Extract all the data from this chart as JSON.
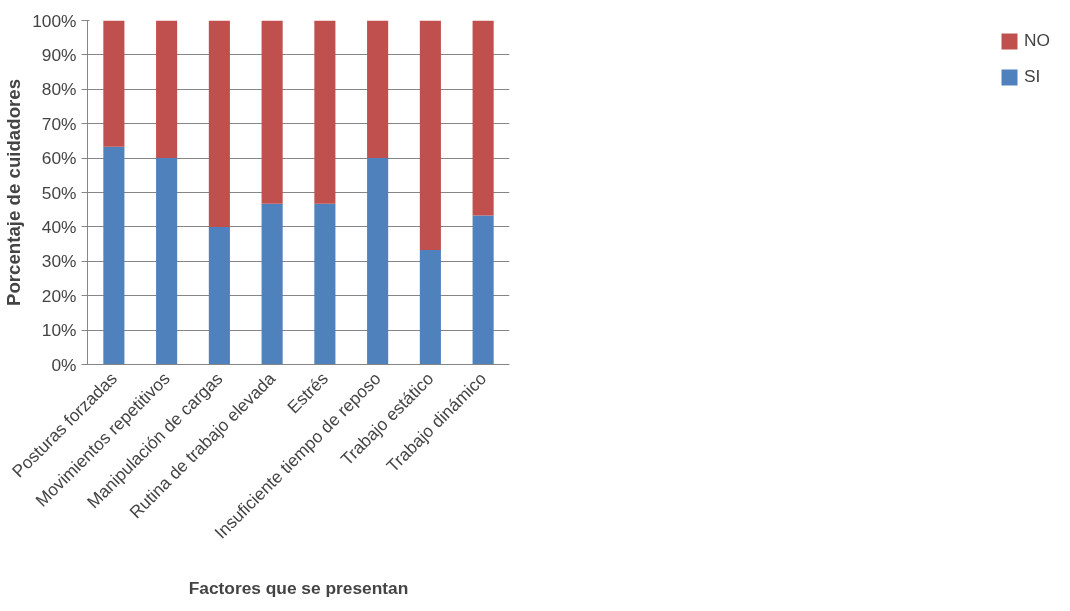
{
  "chart_data": {
    "type": "bar",
    "stacked": true,
    "xlabel": "Factores que se presentan",
    "ylabel": "Porcentaje de cuidadores",
    "categories": [
      "Posturas forzadas",
      "Movimientos repetitivos",
      "Manipulación de cargas",
      "Rutina de trabajo elevada",
      "Estrés",
      "Insuficiente tiempo de reposo",
      "Trabajo estático",
      "Trabajo dinámico"
    ],
    "series": [
      {
        "name": "SI",
        "color": "#4f81bd",
        "values": [
          63.3,
          60,
          40,
          46.7,
          46.7,
          60,
          33.3,
          43.3
        ]
      },
      {
        "name": "NO",
        "color": "#c0504d",
        "values": [
          36.7,
          40,
          60,
          53.3,
          53.3,
          40,
          66.7,
          56.7
        ]
      }
    ],
    "ylim": [
      0,
      100
    ],
    "yticks": [
      {
        "value": 0,
        "label": "0%"
      },
      {
        "value": 10,
        "label": "10%"
      },
      {
        "value": 20,
        "label": "20%"
      },
      {
        "value": 30,
        "label": "30%"
      },
      {
        "value": 40,
        "label": "40%"
      },
      {
        "value": 50,
        "label": "50%"
      },
      {
        "value": 60,
        "label": "60%"
      },
      {
        "value": 70,
        "label": "70%"
      },
      {
        "value": 80,
        "label": "80%"
      },
      {
        "value": 90,
        "label": "90%"
      },
      {
        "value": 100,
        "label": "100%"
      }
    ],
    "grid": "y",
    "legend": "right"
  }
}
